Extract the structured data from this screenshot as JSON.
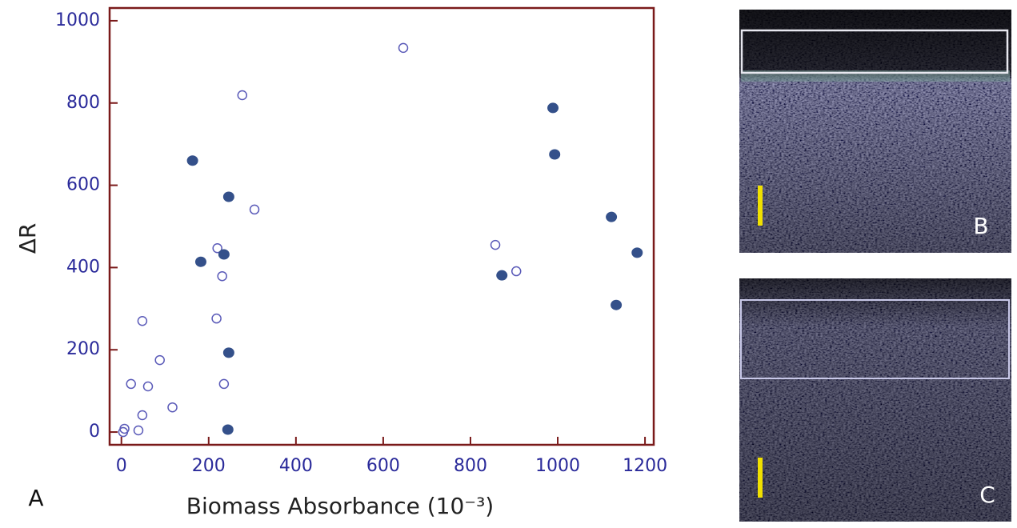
{
  "chart_data": {
    "type": "scatter",
    "x_label": "Biomass Absorbance (10⁻³)",
    "y_label": "ΔR",
    "xlim": [
      -27,
      1220
    ],
    "ylim": [
      -31,
      1031
    ],
    "xticks": [
      0,
      200,
      400,
      600,
      800,
      1000,
      1200
    ],
    "yticks": [
      0,
      200,
      400,
      600,
      800,
      1000
    ],
    "series": [
      {
        "color": "#5a5ab8",
        "filled": false,
        "x": [
          646,
          277,
          305,
          220,
          231,
          48,
          218,
          88,
          22,
          61,
          235,
          117,
          48,
          7,
          4,
          39,
          857,
          905
        ],
        "values": [
          934,
          819,
          541,
          447,
          379,
          270,
          276,
          175,
          117,
          111,
          117,
          60,
          41,
          8,
          0,
          4,
          455,
          391
        ]
      },
      {
        "color": "#34508a",
        "filled": true,
        "x": [
          163,
          246,
          182,
          235,
          246,
          244,
          989,
          993,
          872,
          1123,
          1182,
          1134
        ],
        "values": [
          660,
          572,
          414,
          432,
          193,
          6,
          788,
          675,
          381,
          523,
          436,
          309
        ]
      }
    ]
  },
  "panel_labels": {
    "a": "A",
    "b": "B",
    "c": "C"
  }
}
